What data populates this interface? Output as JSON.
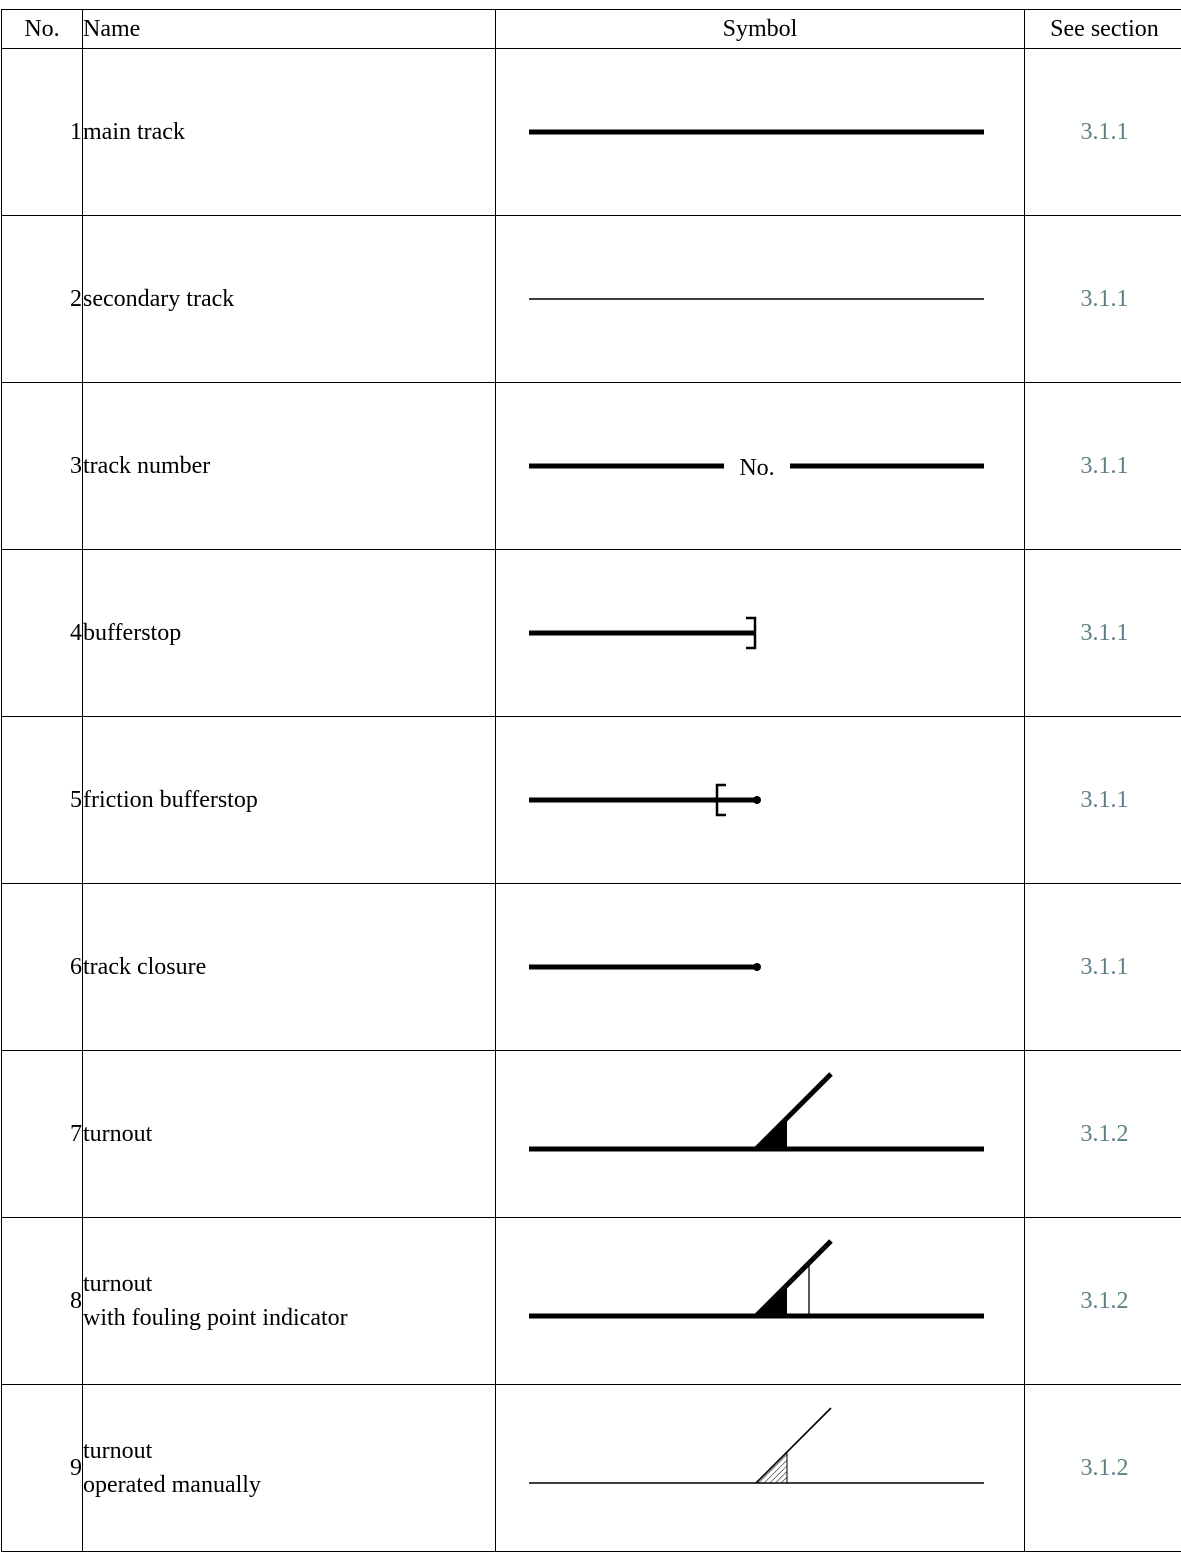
{
  "header": {
    "no": "No.",
    "name": "Name",
    "symbol": "Symbol",
    "section": "See section"
  },
  "link_color": "#5e7f86",
  "rows": [
    {
      "no": "1",
      "name": [
        "main track"
      ],
      "symbol": "main-track",
      "section": "3.1.1"
    },
    {
      "no": "2",
      "name": [
        "secondary track"
      ],
      "symbol": "secondary-track",
      "section": "3.1.1"
    },
    {
      "no": "3",
      "name": [
        "track number"
      ],
      "symbol": "track-number",
      "symbol_text": "No.",
      "section": "3.1.1"
    },
    {
      "no": "4",
      "name": [
        "bufferstop"
      ],
      "symbol": "bufferstop",
      "section": "3.1.1"
    },
    {
      "no": "5",
      "name": [
        "friction bufferstop"
      ],
      "symbol": "friction-bufferstop",
      "section": "3.1.1"
    },
    {
      "no": "6",
      "name": [
        "track closure"
      ],
      "symbol": "track-closure",
      "section": "3.1.1"
    },
    {
      "no": "7",
      "name": [
        "turnout"
      ],
      "symbol": "turnout",
      "section": "3.1.2"
    },
    {
      "no": "8",
      "name": [
        "turnout",
        "with fouling point indicator"
      ],
      "symbol": "turnout-fouling-point",
      "section": "3.1.2"
    },
    {
      "no": "9",
      "name": [
        "turnout",
        "operated manually"
      ],
      "symbol": "turnout-manual",
      "section": "3.1.2"
    }
  ]
}
